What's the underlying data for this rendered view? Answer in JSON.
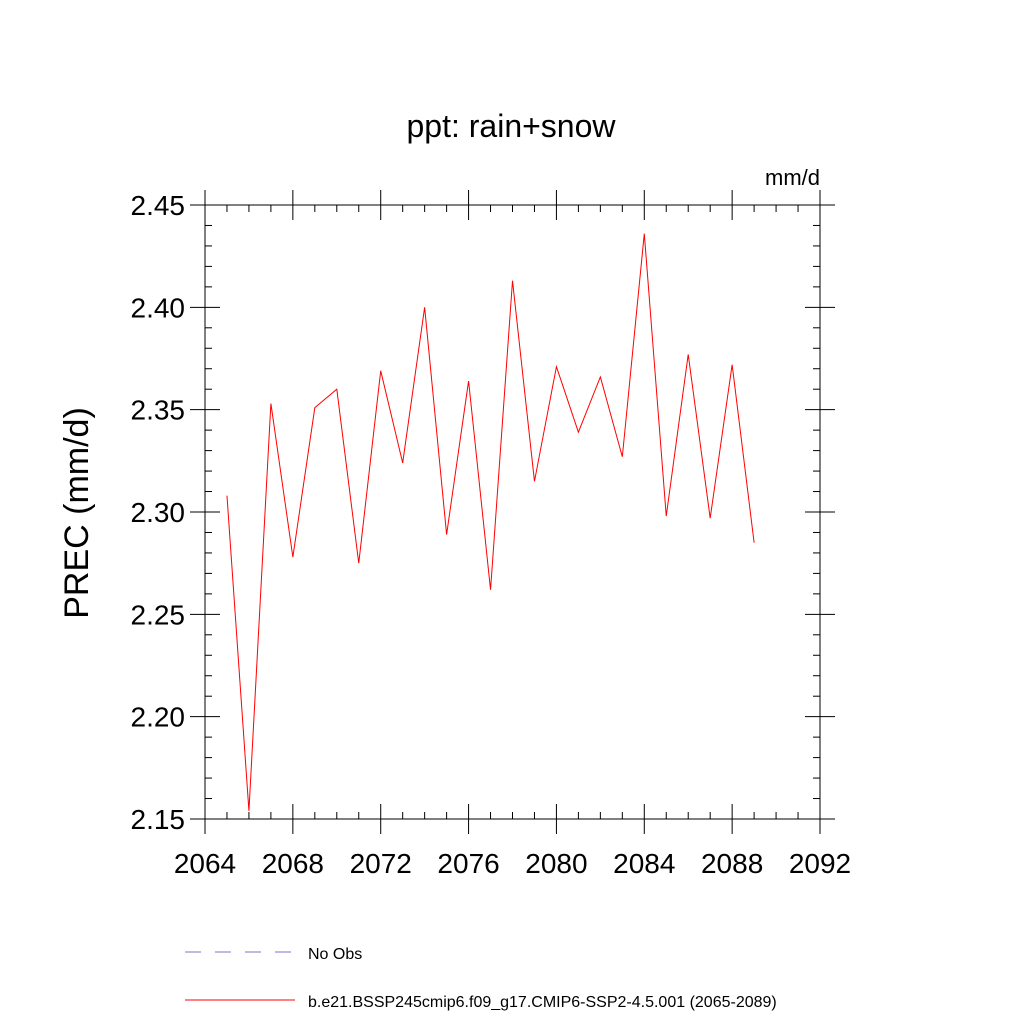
{
  "chart_data": {
    "type": "line",
    "title": "ppt: rain+snow",
    "units": "mm/d",
    "ylabel": "PREC  (mm/d)",
    "xlabel": "",
    "xlim": [
      2064,
      2092
    ],
    "ylim": [
      2.15,
      2.45
    ],
    "x_ticks": [
      2064,
      2068,
      2072,
      2076,
      2080,
      2084,
      2088,
      2092
    ],
    "x_tick_labels": [
      "2064",
      "2068",
      "2072",
      "2076",
      "2080",
      "2084",
      "2088",
      "2092"
    ],
    "y_ticks": [
      2.15,
      2.2,
      2.25,
      2.3,
      2.35,
      2.4,
      2.45
    ],
    "y_tick_labels": [
      "2.15",
      "2.20",
      "2.25",
      "2.30",
      "2.35",
      "2.40",
      "2.45"
    ],
    "grid": false,
    "legend_position": "bottom",
    "series": [
      {
        "name": "b.e21.BSSP245cmip6.f09_g17.CMIP6-SSP2-4.5.001 (2065-2089)",
        "color": "#ff0000",
        "dash": "solid",
        "x": [
          2065,
          2066,
          2067,
          2068,
          2069,
          2070,
          2071,
          2072,
          2073,
          2074,
          2075,
          2076,
          2077,
          2078,
          2079,
          2080,
          2081,
          2082,
          2083,
          2084,
          2085,
          2086,
          2087,
          2088,
          2089
        ],
        "y": [
          2.308,
          2.154,
          2.353,
          2.278,
          2.351,
          2.36,
          2.275,
          2.369,
          2.324,
          2.4,
          2.289,
          2.364,
          2.262,
          2.413,
          2.315,
          2.371,
          2.339,
          2.366,
          2.327,
          2.436,
          2.298,
          2.377,
          2.297,
          2.372,
          2.285
        ]
      }
    ],
    "legend": [
      {
        "label": "No Obs",
        "color": "#7777cc",
        "dash": "dashed"
      },
      {
        "label": "b.e21.BSSP245cmip6.f09_g17.CMIP6-SSP2-4.5.001 (2065-2089)",
        "color": "#ff0000",
        "dash": "solid"
      }
    ]
  }
}
